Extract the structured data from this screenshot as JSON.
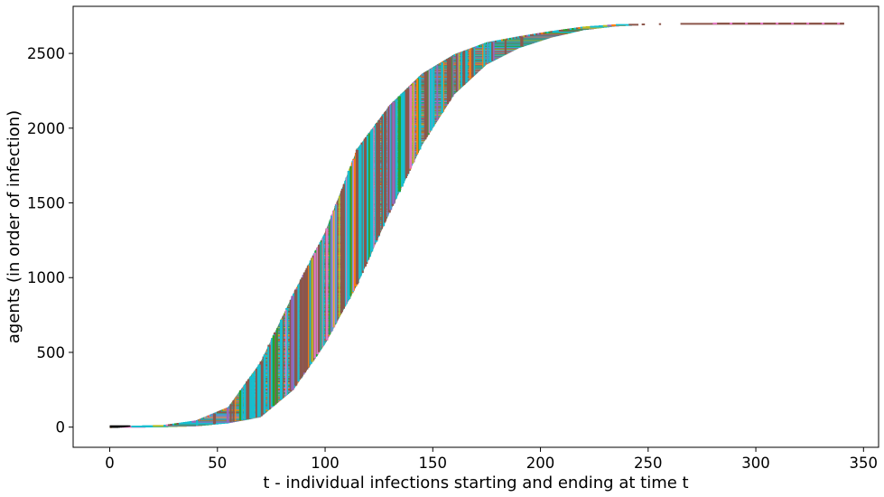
{
  "chart_data": {
    "type": "line",
    "xlabel": "t - individual infections starting and ending at time t",
    "ylabel": "agents (in order of infection)",
    "xlim": [
      -17,
      357
    ],
    "ylim": [
      -135,
      2815
    ],
    "xticks": [
      0,
      50,
      100,
      150,
      200,
      250,
      300,
      350
    ],
    "yticks": [
      0,
      500,
      1000,
      1500,
      2000,
      2500
    ],
    "xtick_labels": [
      "0",
      "50",
      "100",
      "150",
      "200",
      "250",
      "300",
      "350"
    ],
    "ytick_labels": [
      "0",
      "500",
      "1000",
      "1500",
      "2000",
      "2500"
    ],
    "total_agents": 2700,
    "grid": false,
    "legend": "none",
    "segment_colors": [
      "#8c564b",
      "#17becf",
      "#8c564b",
      "#17becf",
      "#2ca02c",
      "#17becf",
      "#8c564b",
      "#e377c2",
      "#ff7f0e",
      "#17becf",
      "#bcbd22",
      "#9467bd",
      "#17becf",
      "#8c564b"
    ],
    "series": [
      {
        "x": [
          0,
          25,
          40,
          55,
          70,
          85,
          100,
          115,
          130,
          145,
          160,
          175,
          190,
          205,
          220,
          235,
          250,
          265,
          280
        ],
        "values": [
          0,
          10,
          40,
          130,
          430,
          880,
          1300,
          1860,
          2150,
          2360,
          2490,
          2570,
          2610,
          2645,
          2675,
          2690,
          2695,
          2698,
          2700
        ]
      },
      {
        "x": [
          0,
          25,
          40,
          55,
          70,
          85,
          100,
          115,
          130,
          145,
          160,
          175,
          190,
          205,
          220,
          235,
          250,
          265,
          280,
          300,
          320,
          341
        ],
        "values": [
          0,
          3,
          10,
          30,
          70,
          250,
          560,
          960,
          1440,
          1890,
          2230,
          2430,
          2540,
          2610,
          2660,
          2685,
          2695,
          2698,
          2700,
          2700,
          2700,
          2700
        ]
      }
    ]
  }
}
